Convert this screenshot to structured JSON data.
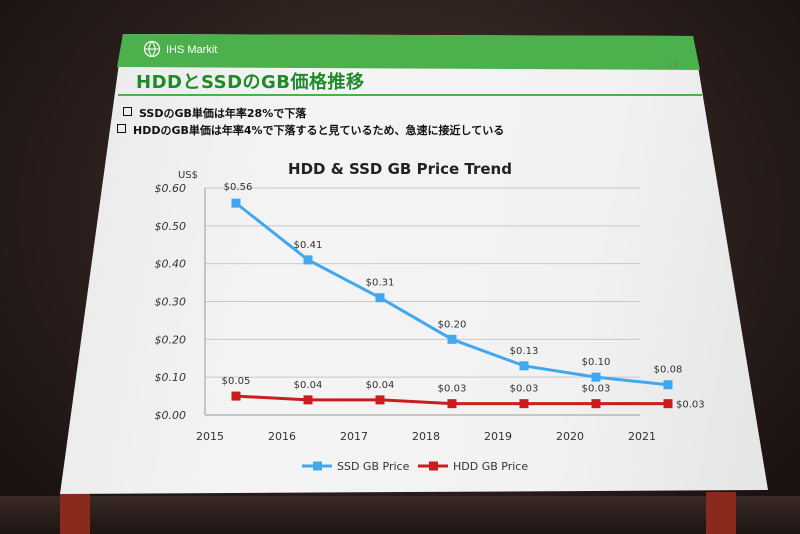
{
  "slide": {
    "brand": "IHS Markit",
    "page_number": "13",
    "title": "HDDとSSDのGB価格推移",
    "bullets": [
      "SSDのGB単価は年率28%で下落",
      "HDDのGB単価は年率4%で下落すると見ているため、急速に接近している"
    ]
  },
  "colors": {
    "brand_green": "#4cb14c",
    "title_green": "#1f8a2a",
    "ssd_series": "#41a8f0",
    "hdd_series": "#c81e1e"
  },
  "chart_data": {
    "type": "line",
    "title": "HDD & SSD GB Price Trend",
    "ylabel": "US$",
    "x": [
      "2015",
      "2016",
      "2017",
      "2018",
      "2019",
      "2020",
      "2021"
    ],
    "ylim": [
      0,
      0.6
    ],
    "yticks": [
      "$0.00",
      "$0.10",
      "$0.20",
      "$0.30",
      "$0.40",
      "$0.50",
      "$0.60"
    ],
    "grid": true,
    "legend_position": "bottom",
    "series": [
      {
        "name": "SSD GB Price",
        "values": [
          0.56,
          0.41,
          0.31,
          0.2,
          0.13,
          0.1,
          0.08
        ],
        "labels": [
          "$0.56",
          "$0.41",
          "$0.31",
          "$0.20",
          "$0.13",
          "$0.10",
          "$0.08"
        ]
      },
      {
        "name": "HDD GB Price",
        "values": [
          0.05,
          0.04,
          0.04,
          0.03,
          0.03,
          0.03,
          0.03
        ],
        "labels": [
          "$0.05",
          "$0.04",
          "$0.04",
          "$0.03",
          "$0.03",
          "$0.03",
          "$0.03"
        ]
      }
    ]
  }
}
